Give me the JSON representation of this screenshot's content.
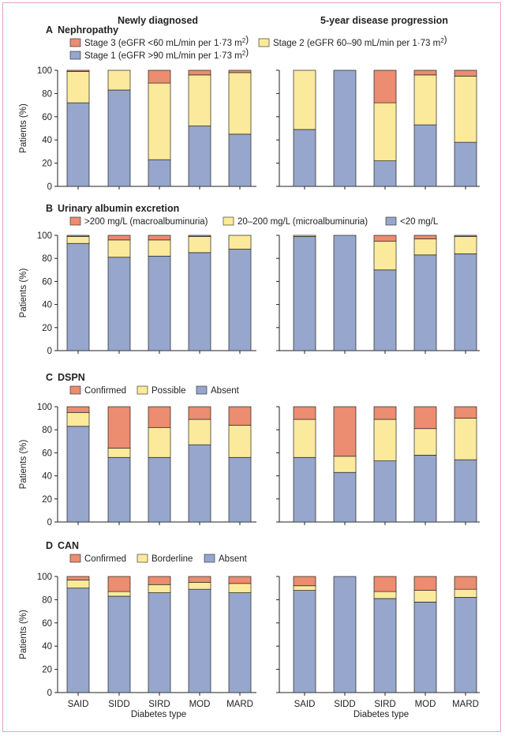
{
  "column_titles": [
    "Newly diagnosed",
    "5-year disease progression"
  ],
  "xlabel": "Diabetes type",
  "ylabel": "Patients (%)",
  "y_ticks": [
    "0",
    "20",
    "40",
    "60",
    "80",
    "100"
  ],
  "colors": {
    "red": "#ec8c70",
    "yellow": "#fcea9c",
    "blue": "#96a6cc",
    "edge": "#222222"
  },
  "chart_data": [
    {
      "type": "bar",
      "stacked": true,
      "panel": "A",
      "title": "Nephropathy",
      "legend": [
        {
          "label": "Stage 3 (eGFR <60 mL/min per 1·73 m²)",
          "color": "#ec8c70"
        },
        {
          "label": "Stage 2 (eGFR 60–90 mL/min per 1·73 m²)",
          "color": "#fcea9c"
        },
        {
          "label": "Stage 1 (eGFR >90 mL/min per 1·73 m²)",
          "color": "#96a6cc"
        }
      ],
      "ylabel": "Patients (%)",
      "ylim": [
        0,
        100
      ],
      "categories": [
        "SAID",
        "SIDD",
        "SIRD",
        "MOD",
        "MARD"
      ],
      "groups": [
        {
          "name": "Newly diagnosed",
          "series": [
            {
              "name": "Stage 1 (eGFR >90 mL/min per 1·73 m²)",
              "values": [
                72,
                83,
                23,
                52,
                45
              ]
            },
            {
              "name": "Stage 2 (eGFR 60–90 mL/min per 1·73 m²)",
              "values": [
                27,
                17,
                66,
                44,
                53
              ]
            },
            {
              "name": "Stage 3 (eGFR <60 mL/min per 1·73 m²)",
              "values": [
                1,
                0,
                11,
                4,
                2
              ]
            }
          ]
        },
        {
          "name": "5-year disease progression",
          "series": [
            {
              "name": "Stage 1 (eGFR >90 mL/min per 1·73 m²)",
              "values": [
                49,
                100,
                22,
                53,
                38
              ]
            },
            {
              "name": "Stage 2 (eGFR 60–90 mL/min per 1·73 m²)",
              "values": [
                51,
                0,
                50,
                43,
                57
              ]
            },
            {
              "name": "Stage 3 (eGFR <60 mL/min per 1·73 m²)",
              "values": [
                0,
                0,
                28,
                4,
                5
              ]
            }
          ]
        }
      ]
    },
    {
      "type": "bar",
      "stacked": true,
      "panel": "B",
      "title": "Urinary albumin excretion",
      "legend": [
        {
          "label": ">200 mg/L (macroalbuminuria)",
          "color": "#ec8c70"
        },
        {
          "label": "20–200 mg/L (microalbuminuria)",
          "color": "#fcea9c"
        },
        {
          "label": "<20 mg/L",
          "color": "#96a6cc"
        }
      ],
      "ylabel": "Patients (%)",
      "ylim": [
        0,
        100
      ],
      "categories": [
        "SAID",
        "SIDD",
        "SIRD",
        "MOD",
        "MARD"
      ],
      "groups": [
        {
          "name": "Newly diagnosed",
          "series": [
            {
              "name": "<20 mg/L",
              "values": [
                93,
                81,
                82,
                85,
                88
              ]
            },
            {
              "name": "20–200 mg/L (microalbuminuria)",
              "values": [
                6,
                15,
                14,
                14,
                12
              ]
            },
            {
              "name": ">200 mg/L (macroalbuminuria)",
              "values": [
                1,
                4,
                4,
                1,
                0
              ]
            }
          ]
        },
        {
          "name": "5-year disease progression",
          "series": [
            {
              "name": "<20 mg/L",
              "values": [
                99,
                100,
                70,
                83,
                84
              ]
            },
            {
              "name": "20–200 mg/L (microalbuminuria)",
              "values": [
                1,
                0,
                25,
                14,
                15
              ]
            },
            {
              "name": ">200 mg/L (macroalbuminuria)",
              "values": [
                0,
                0,
                5,
                3,
                1
              ]
            }
          ]
        }
      ]
    },
    {
      "type": "bar",
      "stacked": true,
      "panel": "C",
      "title": "DSPN",
      "legend": [
        {
          "label": "Confirmed",
          "color": "#ec8c70"
        },
        {
          "label": "Possible",
          "color": "#fcea9c"
        },
        {
          "label": "Absent",
          "color": "#96a6cc"
        }
      ],
      "ylabel": "Patients (%)",
      "ylim": [
        0,
        100
      ],
      "categories": [
        "SAID",
        "SIDD",
        "SIRD",
        "MOD",
        "MARD"
      ],
      "groups": [
        {
          "name": "Newly diagnosed",
          "series": [
            {
              "name": "Absent",
              "values": [
                83,
                56,
                56,
                67,
                56
              ]
            },
            {
              "name": "Possible",
              "values": [
                12,
                8,
                26,
                22,
                28
              ]
            },
            {
              "name": "Confirmed",
              "values": [
                5,
                36,
                18,
                11,
                16
              ]
            }
          ]
        },
        {
          "name": "5-year disease progression",
          "series": [
            {
              "name": "Absent",
              "values": [
                56,
                43,
                53,
                58,
                54
              ]
            },
            {
              "name": "Possible",
              "values": [
                33,
                14,
                36,
                23,
                36
              ]
            },
            {
              "name": "Confirmed",
              "values": [
                11,
                43,
                11,
                19,
                10
              ]
            }
          ]
        }
      ]
    },
    {
      "type": "bar",
      "stacked": true,
      "panel": "D",
      "title": "CAN",
      "legend": [
        {
          "label": "Confirmed",
          "color": "#ec8c70"
        },
        {
          "label": "Borderline",
          "color": "#fcea9c"
        },
        {
          "label": "Absent",
          "color": "#96a6cc"
        }
      ],
      "ylabel": "Patients (%)",
      "xlabel": "Diabetes type",
      "ylim": [
        0,
        100
      ],
      "categories": [
        "SAID",
        "SIDD",
        "SIRD",
        "MOD",
        "MARD"
      ],
      "groups": [
        {
          "name": "Newly diagnosed",
          "series": [
            {
              "name": "Absent",
              "values": [
                90,
                83,
                86,
                89,
                86
              ]
            },
            {
              "name": "Borderline",
              "values": [
                7,
                4,
                7,
                6,
                8
              ]
            },
            {
              "name": "Confirmed",
              "values": [
                3,
                13,
                7,
                5,
                6
              ]
            }
          ]
        },
        {
          "name": "5-year disease progression",
          "series": [
            {
              "name": "Absent",
              "values": [
                88,
                100,
                81,
                78,
                82
              ]
            },
            {
              "name": "Borderline",
              "values": [
                4,
                0,
                6,
                10,
                7
              ]
            },
            {
              "name": "Confirmed",
              "values": [
                8,
                0,
                13,
                12,
                11
              ]
            }
          ]
        }
      ]
    }
  ]
}
